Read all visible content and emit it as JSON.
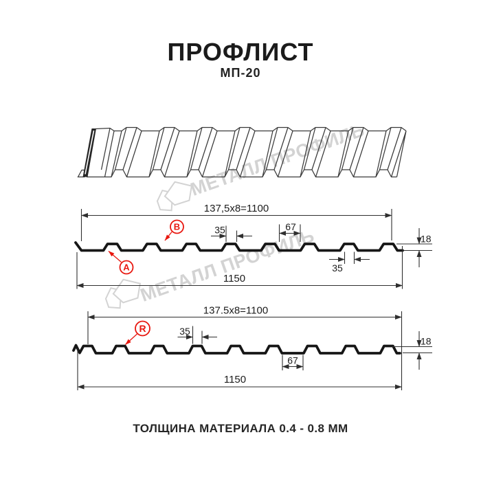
{
  "header": {
    "title": "ПРОФЛИСТ",
    "subtitle": "МП-20"
  },
  "footer": {
    "text": "ТОЛЩИНА МАТЕРИАЛА 0.4 - 0.8 ММ"
  },
  "watermark": {
    "text": "МЕТАЛЛ ПРОФИЛЬ",
    "color": "#d3d3d3"
  },
  "colors": {
    "accent_red": "#e8170f",
    "line": "#333333",
    "profile": "#161616"
  },
  "section_top": {
    "dim_width_pitch": "137,5x8=1100",
    "dim_overall": "1150",
    "dim_rib_top": "35",
    "dim_valley": "67",
    "dim_height": "18",
    "dim_rib_top_2": "35",
    "label_a": "A",
    "label_b": "B"
  },
  "section_bottom": {
    "dim_width_pitch": "137.5x8=1100",
    "dim_overall": "1150",
    "dim_rib_top": "35",
    "dim_valley": "67",
    "dim_height": "18",
    "label_r": "R"
  }
}
